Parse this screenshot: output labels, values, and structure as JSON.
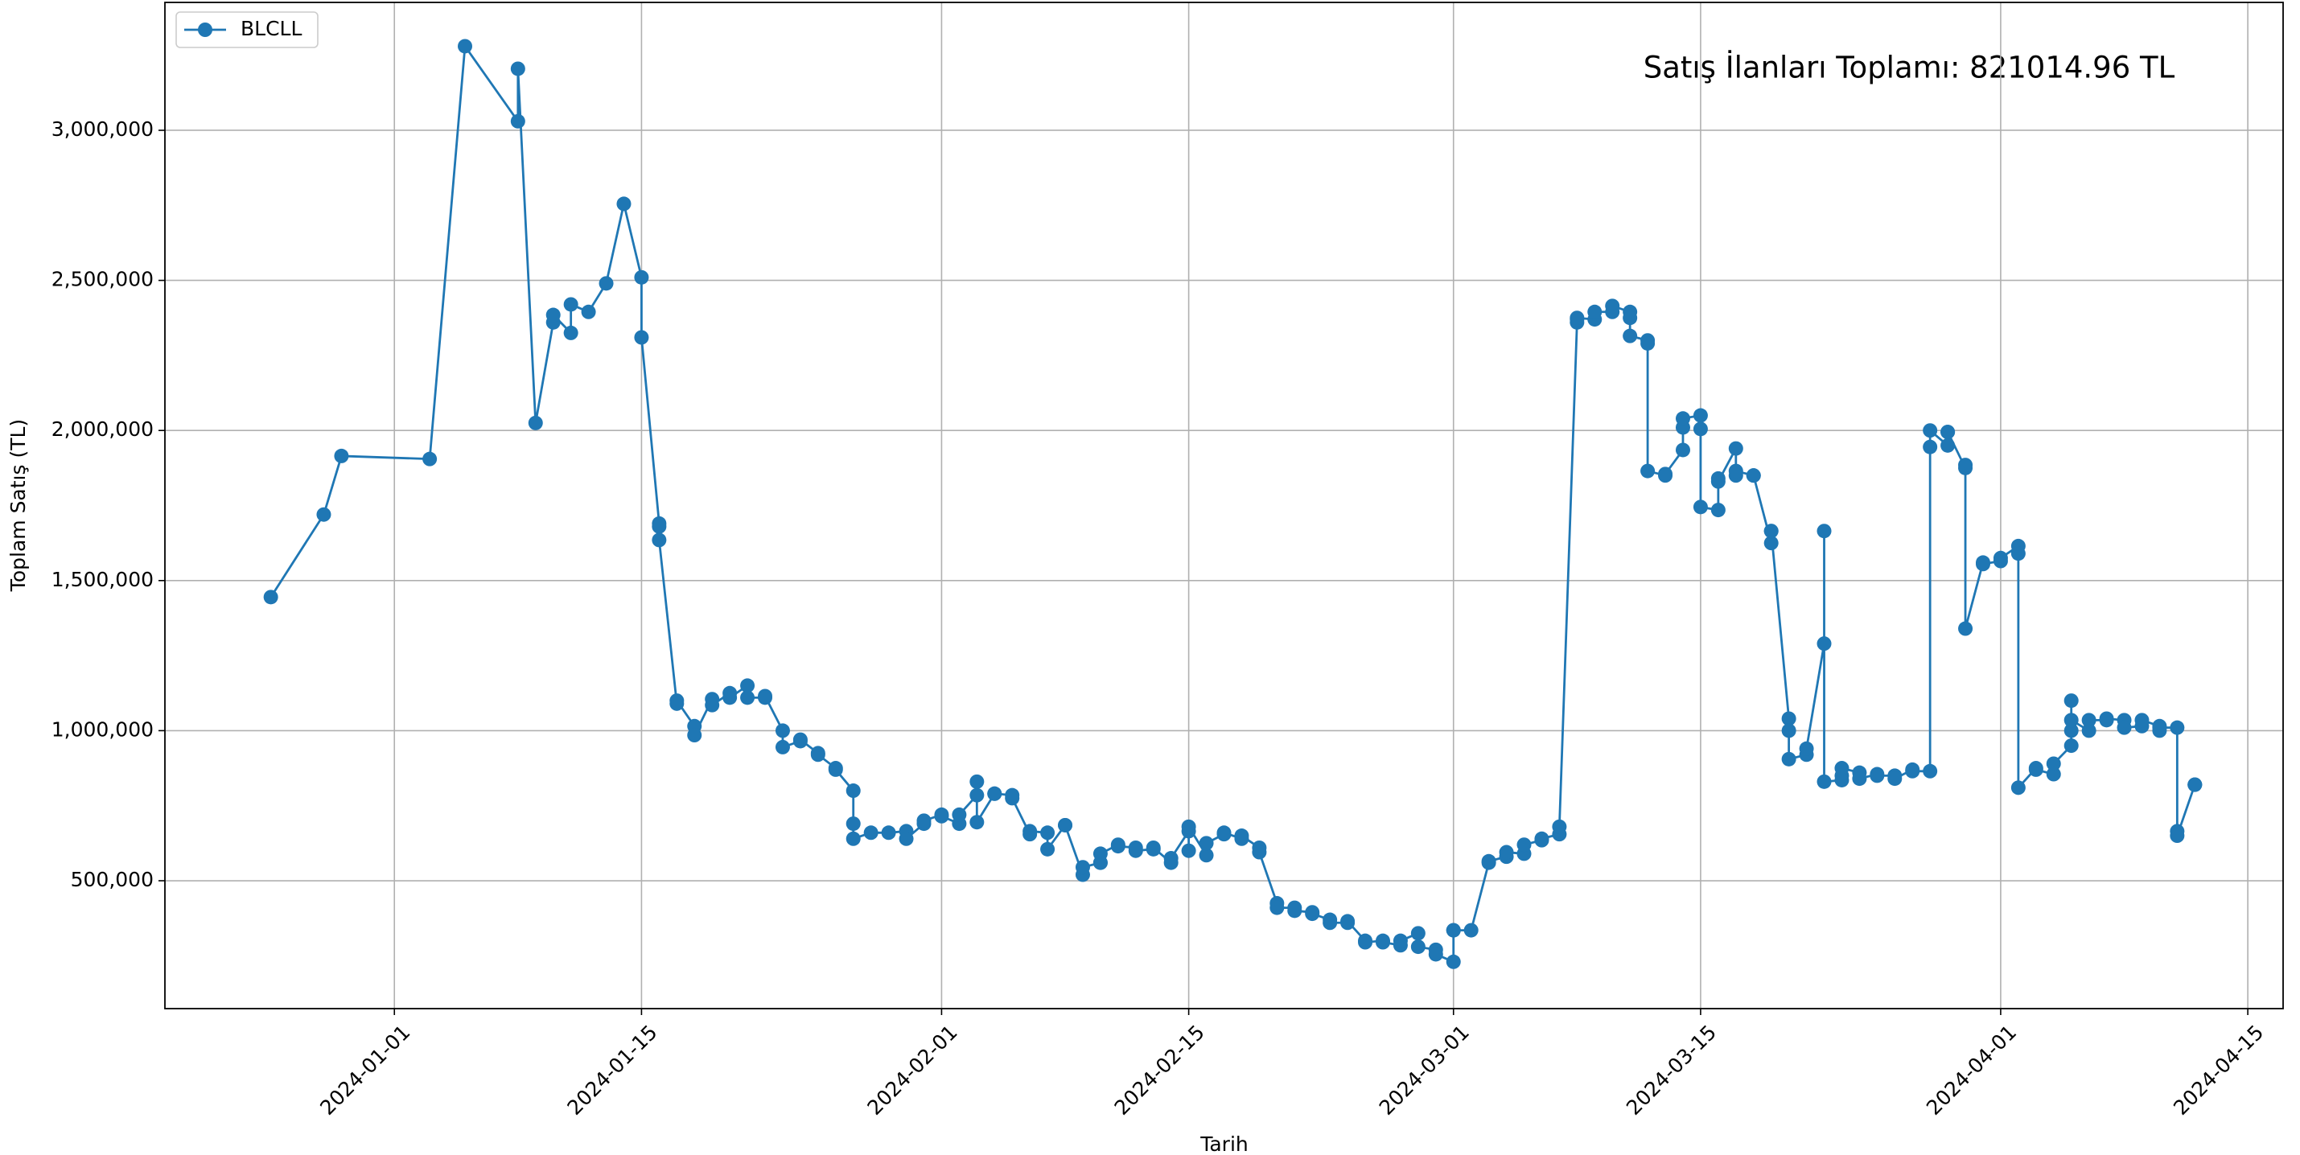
{
  "chart_data": {
    "type": "line",
    "annotation": "Satış İlanları Toplamı: 821014.96 TL",
    "xlabel": "Tarih",
    "ylabel": "Toplam Satış (TL)",
    "legend": "upper left",
    "grid": true,
    "xlim": [
      "2023-12-19",
      "2024-04-17"
    ],
    "xticks": [
      "2024-01-01",
      "2024-01-15",
      "2024-02-01",
      "2024-02-15",
      "2024-03-01",
      "2024-03-15",
      "2024-04-01",
      "2024-04-15"
    ],
    "ylim": [
      74000,
      3426000
    ],
    "yticks": [
      {
        "value": 500000,
        "label": "500,000"
      },
      {
        "value": 1000000,
        "label": "1,000,000"
      },
      {
        "value": 1500000,
        "label": "1,500,000"
      },
      {
        "value": 2000000,
        "label": "2,000,000"
      },
      {
        "value": 2500000,
        "label": "2,500,000"
      },
      {
        "value": 3000000,
        "label": "3,000,000"
      }
    ],
    "x": [
      "2023-12-25",
      "2023-12-28",
      "2023-12-29",
      "2024-01-03",
      "2024-01-05",
      "2024-01-08",
      "2024-01-08",
      "2024-01-09",
      "2024-01-10",
      "2024-01-10",
      "2024-01-11",
      "2024-01-11",
      "2024-01-12",
      "2024-01-13",
      "2024-01-14",
      "2024-01-15",
      "2024-01-15",
      "2024-01-16",
      "2024-01-16",
      "2024-01-16",
      "2024-01-17",
      "2024-01-17",
      "2024-01-18",
      "2024-01-18",
      "2024-01-19",
      "2024-01-19",
      "2024-01-20",
      "2024-01-20",
      "2024-01-21",
      "2024-01-21",
      "2024-01-22",
      "2024-01-22",
      "2024-01-23",
      "2024-01-23",
      "2024-01-24",
      "2024-01-24",
      "2024-01-25",
      "2024-01-25",
      "2024-01-26",
      "2024-01-26",
      "2024-01-27",
      "2024-01-27",
      "2024-01-27",
      "2024-01-28",
      "2024-01-29",
      "2024-01-30",
      "2024-01-30",
      "2024-01-31",
      "2024-01-31",
      "2024-02-01",
      "2024-02-01",
      "2024-02-02",
      "2024-02-02",
      "2024-02-03",
      "2024-02-03",
      "2024-02-03",
      "2024-02-04",
      "2024-02-04",
      "2024-02-05",
      "2024-02-05",
      "2024-02-06",
      "2024-02-06",
      "2024-02-07",
      "2024-02-07",
      "2024-02-08",
      "2024-02-08",
      "2024-02-09",
      "2024-02-09",
      "2024-02-10",
      "2024-02-10",
      "2024-02-10",
      "2024-02-11",
      "2024-02-11",
      "2024-02-12",
      "2024-02-12",
      "2024-02-13",
      "2024-02-13",
      "2024-02-14",
      "2024-02-14",
      "2024-02-15",
      "2024-02-15",
      "2024-02-15",
      "2024-02-16",
      "2024-02-16",
      "2024-02-17",
      "2024-02-17",
      "2024-02-18",
      "2024-02-18",
      "2024-02-19",
      "2024-02-19",
      "2024-02-20",
      "2024-02-20",
      "2024-02-21",
      "2024-02-21",
      "2024-02-22",
      "2024-02-22",
      "2024-02-23",
      "2024-02-23",
      "2024-02-24",
      "2024-02-24",
      "2024-02-25",
      "2024-02-25",
      "2024-02-26",
      "2024-02-26",
      "2024-02-27",
      "2024-02-27",
      "2024-02-28",
      "2024-02-28",
      "2024-02-29",
      "2024-02-29",
      "2024-03-01",
      "2024-03-01",
      "2024-03-01",
      "2024-03-02",
      "2024-03-03",
      "2024-03-03",
      "2024-03-04",
      "2024-03-04",
      "2024-03-05",
      "2024-03-05",
      "2024-03-06",
      "2024-03-06",
      "2024-03-07",
      "2024-03-07",
      "2024-03-08",
      "2024-03-08",
      "2024-03-08",
      "2024-03-09",
      "2024-03-09",
      "2024-03-10",
      "2024-03-10",
      "2024-03-11",
      "2024-03-11",
      "2024-03-11",
      "2024-03-12",
      "2024-03-12",
      "2024-03-12",
      "2024-03-13",
      "2024-03-13",
      "2024-03-14",
      "2024-03-14",
      "2024-03-14",
      "2024-03-15",
      "2024-03-15",
      "2024-03-15",
      "2024-03-16",
      "2024-03-16",
      "2024-03-16",
      "2024-03-17",
      "2024-03-17",
      "2024-03-17",
      "2024-03-18",
      "2024-03-18",
      "2024-03-19",
      "2024-03-19",
      "2024-03-19",
      "2024-03-20",
      "2024-03-20",
      "2024-03-20",
      "2024-03-21",
      "2024-03-21",
      "2024-03-22",
      "2024-03-22",
      "2024-03-22",
      "2024-03-23",
      "2024-03-23",
      "2024-03-23",
      "2024-03-24",
      "2024-03-24",
      "2024-03-25",
      "2024-03-25",
      "2024-03-26",
      "2024-03-26",
      "2024-03-27",
      "2024-03-27",
      "2024-03-28",
      "2024-03-28",
      "2024-03-28",
      "2024-03-29",
      "2024-03-29",
      "2024-03-29",
      "2024-03-30",
      "2024-03-30",
      "2024-03-30",
      "2024-03-31",
      "2024-03-31",
      "2024-04-01",
      "2024-04-01",
      "2024-04-02",
      "2024-04-02",
      "2024-04-02",
      "2024-04-03",
      "2024-04-03",
      "2024-04-04",
      "2024-04-04",
      "2024-04-05",
      "2024-04-05",
      "2024-04-05",
      "2024-04-05",
      "2024-04-06",
      "2024-04-06",
      "2024-04-07",
      "2024-04-07",
      "2024-04-08",
      "2024-04-08",
      "2024-04-09",
      "2024-04-09",
      "2024-04-10",
      "2024-04-10",
      "2024-04-10",
      "2024-04-11",
      "2024-04-11",
      "2024-04-11",
      "2024-04-12",
      "2024-04-12",
      "2024-04-12"
    ],
    "series": [
      {
        "name": "BLCLL",
        "color": "#1f77b4",
        "values": [
          1445000,
          1720000,
          1915000,
          1905000,
          3280000,
          3030000,
          3205000,
          2025000,
          2360000,
          2385000,
          2325000,
          2420000,
          2395000,
          2490000,
          2755000,
          2510000,
          2310000,
          1690000,
          1680000,
          1635000,
          1090000,
          1100000,
          1015000,
          985000,
          1105000,
          1085000,
          1125000,
          1110000,
          1150000,
          1110000,
          1110000,
          1115000,
          1000000,
          945000,
          965000,
          970000,
          925000,
          920000,
          875000,
          870000,
          800000,
          690000,
          640000,
          660000,
          660000,
          665000,
          640000,
          690000,
          700000,
          720000,
          715000,
          690000,
          720000,
          785000,
          830000,
          695000,
          790000,
          790000,
          785000,
          775000,
          655000,
          665000,
          660000,
          605000,
          685000,
          685000,
          520000,
          545000,
          560000,
          560000,
          590000,
          620000,
          615000,
          610000,
          600000,
          605000,
          610000,
          560000,
          575000,
          665000,
          600000,
          680000,
          585000,
          625000,
          655000,
          660000,
          640000,
          650000,
          610000,
          595000,
          425000,
          410000,
          410000,
          400000,
          395000,
          390000,
          370000,
          360000,
          360000,
          365000,
          300000,
          295000,
          300000,
          295000,
          285000,
          300000,
          325000,
          280000,
          270000,
          255000,
          230000,
          335000,
          335000,
          335000,
          560000,
          565000,
          580000,
          595000,
          590000,
          620000,
          635000,
          640000,
          655000,
          680000,
          2360000,
          2370000,
          2375000,
          2370000,
          2395000,
          2395000,
          2415000,
          2395000,
          2375000,
          2315000,
          2300000,
          2290000,
          1865000,
          1850000,
          1855000,
          1935000,
          2010000,
          2040000,
          2050000,
          2005000,
          1745000,
          1735000,
          1840000,
          1830000,
          1940000,
          1850000,
          1865000,
          1850000,
          1850000,
          1625000,
          1665000,
          1665000,
          1040000,
          1000000,
          905000,
          920000,
          940000,
          1290000,
          1665000,
          830000,
          835000,
          850000,
          875000,
          860000,
          840000,
          855000,
          850000,
          850000,
          840000,
          870000,
          865000,
          865000,
          1945000,
          2000000,
          1950000,
          1995000,
          1995000,
          1875000,
          1885000,
          1340000,
          1560000,
          1555000,
          1565000,
          1575000,
          1615000,
          1590000,
          810000,
          875000,
          870000,
          855000,
          890000,
          950000,
          1000000,
          1100000,
          1035000,
          1000000,
          1035000,
          1035000,
          1040000,
          1035000,
          1010000,
          1015000,
          1035000,
          1015000,
          1000000,
          1010000,
          1010000,
          665000,
          650000,
          820000,
          820000,
          820000
        ]
      }
    ]
  }
}
